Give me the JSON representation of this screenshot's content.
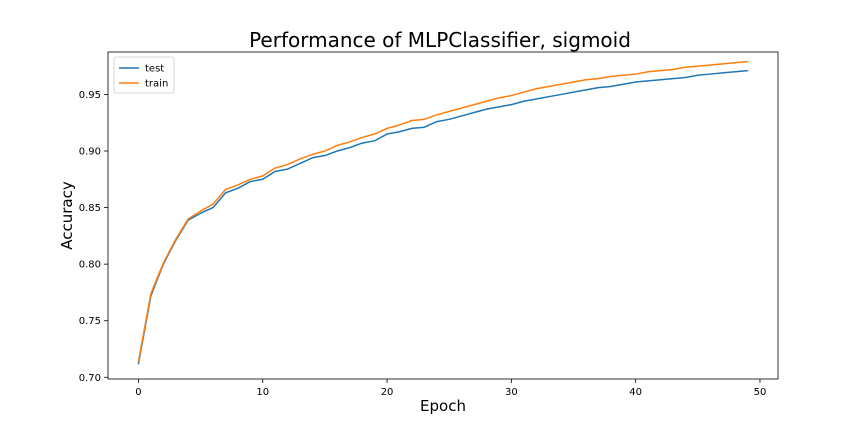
{
  "chart_data": {
    "type": "line",
    "title": "Performance of MLPClassifier, sigmoid",
    "xlabel": "Epoch",
    "ylabel": "Accuracy",
    "xlim": [
      -2.45,
      51.45
    ],
    "ylim": [
      0.6985,
      0.9875
    ],
    "xticks": [
      0,
      10,
      20,
      30,
      40,
      50
    ],
    "xtick_labels": [
      "0",
      "10",
      "20",
      "30",
      "40",
      "50"
    ],
    "yticks": [
      0.7,
      0.75,
      0.8,
      0.85,
      0.9,
      0.95
    ],
    "ytick_labels": [
      "0.70",
      "0.75",
      "0.80",
      "0.85",
      "0.90",
      "0.95"
    ],
    "grid": false,
    "legend": {
      "placement": "top-left"
    },
    "x": [
      0,
      1,
      2,
      3,
      4,
      5,
      6,
      7,
      8,
      9,
      10,
      11,
      12,
      13,
      14,
      15,
      16,
      17,
      18,
      19,
      20,
      21,
      22,
      23,
      24,
      25,
      26,
      27,
      28,
      29,
      30,
      31,
      32,
      33,
      34,
      35,
      36,
      37,
      38,
      39,
      40,
      41,
      42,
      43,
      44,
      45,
      46,
      47,
      48,
      49
    ],
    "series": [
      {
        "name": "test",
        "color": "#1f77b4",
        "values": [
          0.712,
          0.772,
          0.8,
          0.821,
          0.839,
          0.845,
          0.85,
          0.863,
          0.867,
          0.873,
          0.875,
          0.882,
          0.884,
          0.889,
          0.894,
          0.896,
          0.9,
          0.903,
          0.907,
          0.909,
          0.915,
          0.917,
          0.92,
          0.921,
          0.926,
          0.928,
          0.931,
          0.934,
          0.937,
          0.939,
          0.941,
          0.944,
          0.946,
          0.948,
          0.95,
          0.952,
          0.954,
          0.956,
          0.957,
          0.959,
          0.961,
          0.962,
          0.963,
          0.964,
          0.965,
          0.967,
          0.968,
          0.969,
          0.97,
          0.971
        ]
      },
      {
        "name": "train",
        "color": "#ff7f0e",
        "values": [
          0.714,
          0.774,
          0.801,
          0.822,
          0.84,
          0.847,
          0.853,
          0.866,
          0.87,
          0.875,
          0.878,
          0.885,
          0.888,
          0.893,
          0.897,
          0.9,
          0.905,
          0.908,
          0.912,
          0.915,
          0.92,
          0.923,
          0.927,
          0.928,
          0.932,
          0.935,
          0.938,
          0.941,
          0.944,
          0.947,
          0.949,
          0.952,
          0.955,
          0.957,
          0.959,
          0.961,
          0.963,
          0.964,
          0.966,
          0.967,
          0.968,
          0.97,
          0.971,
          0.972,
          0.974,
          0.975,
          0.976,
          0.977,
          0.978,
          0.979
        ]
      }
    ]
  }
}
